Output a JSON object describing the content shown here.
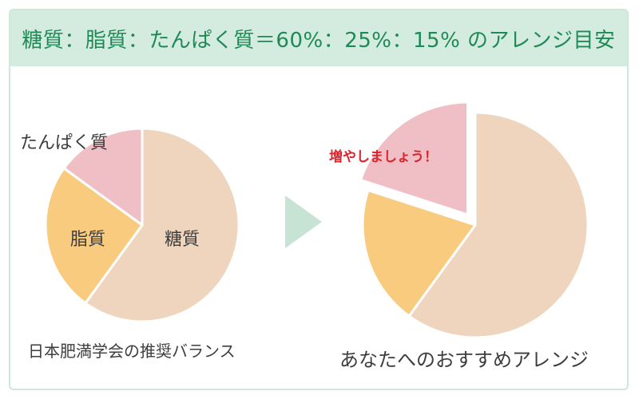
{
  "header": {
    "title": "糖質：脂質：たんぱく質＝60%：25%：15% のアレンジ目安"
  },
  "colors": {
    "header_bg": "#d4ebdf",
    "header_text": "#1f8a56",
    "carb": "#efd5bd",
    "fat": "#f8cb7f",
    "protein": "#efbfc5",
    "arrow": "#c6e3d4",
    "callout": "#d9262c"
  },
  "chart_data": [
    {
      "type": "pie",
      "caption": "日本肥満学会の推奨バランス",
      "slices": [
        {
          "label": "糖質",
          "value": 60,
          "color": "#efd5bd"
        },
        {
          "label": "脂質",
          "value": 25,
          "color": "#f8cb7f"
        },
        {
          "label": "たんぱく質",
          "value": 15,
          "color": "#efbfc5"
        }
      ]
    },
    {
      "type": "pie",
      "caption": "あなたへのおすすめアレンジ",
      "annotation": "増やしましょう！",
      "slices": [
        {
          "label": "",
          "value": 60,
          "color": "#efd5bd"
        },
        {
          "label": "",
          "value": 20,
          "color": "#f8cb7f"
        },
        {
          "label": "",
          "value": 20,
          "color": "#efbfc5",
          "exploded": true
        }
      ]
    }
  ]
}
